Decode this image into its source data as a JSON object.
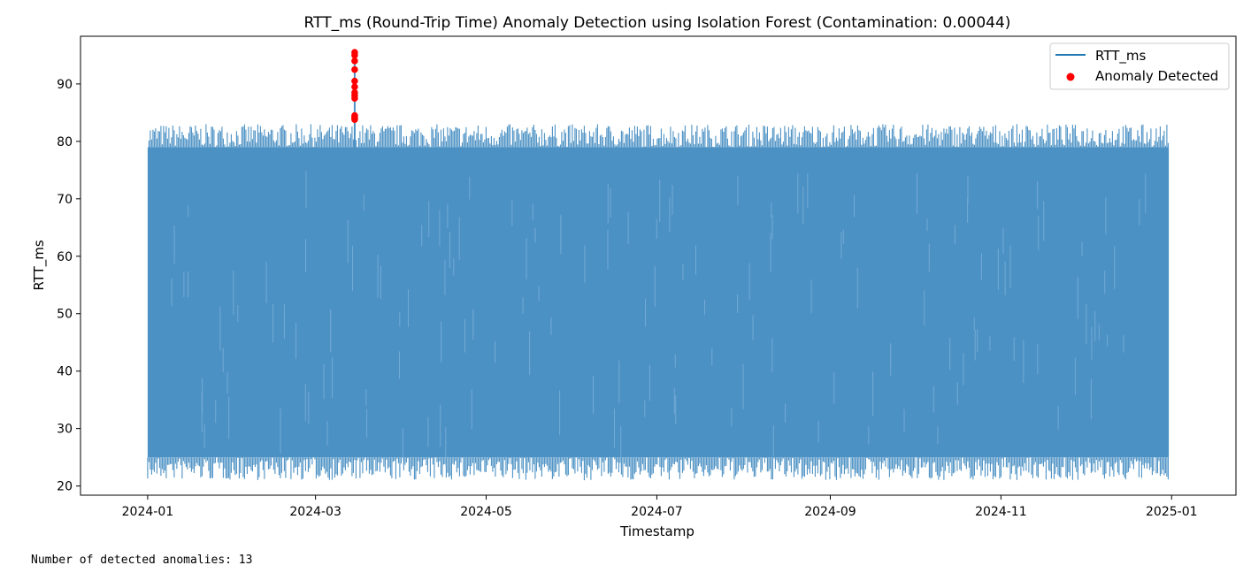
{
  "chart_data": {
    "type": "line",
    "title": "RTT_ms (Round-Trip Time) Anomaly Detection using Isolation Forest (Contamination: 0.00044)",
    "xlabel": "Timestamp",
    "ylabel": "RTT_ms",
    "xlim": [
      "2023-12-08",
      "2025-01-24"
    ],
    "ylim": [
      18.4,
      98.3
    ],
    "x_ticks": [
      "2024-01",
      "2024-03",
      "2024-05",
      "2024-07",
      "2024-09",
      "2024-11",
      "2025-01"
    ],
    "y_ticks": [
      20,
      30,
      40,
      50,
      60,
      70,
      80,
      90
    ],
    "grid": false,
    "legend_position": "top-right",
    "series": [
      {
        "name": "RTT_ms",
        "kind": "line",
        "color": "#1f77b4",
        "x_range": [
          "2024-01-01",
          "2024-12-31"
        ],
        "typical_min": 25,
        "typical_max": 79,
        "observed_min": 21,
        "observed_max": 83
      },
      {
        "name": "Anomaly Detected",
        "kind": "scatter",
        "color": "#ff0000",
        "x": [
          "2024-03-15",
          "2024-03-15",
          "2024-03-15",
          "2024-03-15",
          "2024-03-15",
          "2024-03-15",
          "2024-03-15",
          "2024-03-15",
          "2024-03-15",
          "2024-03-15",
          "2024-03-15",
          "2024-03-15",
          "2024-03-15"
        ],
        "y": [
          95.5,
          95.0,
          94.0,
          92.5,
          90.5,
          89.5,
          88.5,
          88.0,
          87.5,
          84.5,
          84.2,
          84.0,
          83.8
        ]
      }
    ]
  },
  "output": {
    "text": "Number of detected anomalies: 13"
  }
}
